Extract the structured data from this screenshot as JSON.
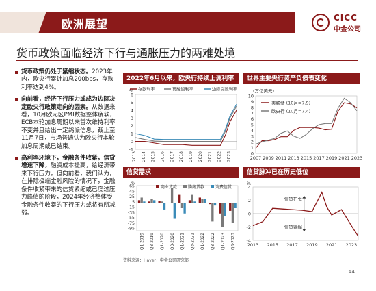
{
  "header": {
    "title": "欧洲展望",
    "logo_en": "CICC",
    "logo_cn": "中金公司"
  },
  "page_title": "货币政策面临经济下行与通胀压力的两难处境",
  "bullets": [
    {
      "lead": "货币政策仍处于紧缩状态。",
      "body": "2023年内，欧央行累计加息200bps，存款利率达到4%。"
    },
    {
      "lead": "向前看，经济下行压力或成为边际决定欧央行政策走向的因素。",
      "body": "从数据来看，10月欧元区PMI数据整体疲软，ECB本轮加息周期以来首次维持利率不变并且给出一定鸽派信息，截止至11月7日，市场普遍认为欧央行本轮加息周期或已结束。"
    },
    {
      "lead": "高利率环境下，金融条件收紧，信贷增速下降，",
      "body": "融资成本提高，给经济带来下行压力。但向前看，我们认为，在排除极端金融风险的情况下，金融条件收紧带来的信贷紧缩或已度过压力峰值的阶段，2024年经济整体受金融条件收紧的下行压力或将有所减弱。"
    }
  ],
  "colors": {
    "brand": "#8b1a1a",
    "series1": "#8b1a1a",
    "series2": "#7a7a7a",
    "series3": "#3a8bb8"
  },
  "source_note": "资料来源：Haver，中金公司研究部",
  "page_number": "44",
  "chart_data": [
    {
      "type": "line",
      "title": "2022年6月以来，欧央行持续上调利率",
      "ylabel": "%",
      "ylim": [
        -1,
        6
      ],
      "yticks": [
        -1,
        0,
        1,
        2,
        3,
        4,
        5,
        6
      ],
      "x": [
        "2013",
        "2014",
        "2015",
        "2016",
        "2017",
        "2018",
        "2019",
        "2020",
        "2021",
        "2022",
        "2022.5",
        "2023",
        "2023.7"
      ],
      "xticks": [
        "2013",
        "2014",
        "2015",
        "2016",
        "2017",
        "2018",
        "2019",
        "2020",
        "2021",
        "2022",
        "2023"
      ],
      "series": [
        {
          "name": "存款利率",
          "values": [
            0,
            0,
            -0.2,
            -0.4,
            -0.4,
            -0.4,
            -0.5,
            -0.5,
            -0.5,
            -0.5,
            0.75,
            2.5,
            4.0
          ]
        },
        {
          "name": "再融资利率",
          "values": [
            0.5,
            0.25,
            0.05,
            0,
            0,
            0,
            0,
            0,
            0,
            0,
            1.25,
            3.0,
            4.5
          ]
        },
        {
          "name": "边际贷款利率",
          "values": [
            1.0,
            0.75,
            0.3,
            0.25,
            0.25,
            0.25,
            0.25,
            0.25,
            0.25,
            0.25,
            1.5,
            3.25,
            4.75
          ]
        }
      ]
    },
    {
      "type": "line",
      "title": "世界主要央行资产负债表变化",
      "ylabel": "(万亿美元)",
      "ylim": [
        0,
        10
      ],
      "yticks": [
        0,
        1,
        2,
        3,
        4,
        5,
        6,
        7,
        8,
        9,
        10
      ],
      "x": [
        "2007",
        "2008",
        "2009",
        "2010",
        "2011",
        "2012",
        "2013",
        "2014",
        "2015",
        "2016",
        "2017",
        "2018",
        "2019",
        "2020",
        "2021",
        "2022",
        "2023"
      ],
      "xticks": [
        "2007",
        "2009",
        "2011",
        "2013",
        "2015",
        "2017",
        "2019",
        "2021",
        "2023"
      ],
      "series": [
        {
          "name": "美联储 (10月=7.9)",
          "values": [
            0.9,
            2.2,
            2.2,
            2.4,
            2.9,
            2.9,
            4.0,
            4.5,
            4.5,
            4.5,
            4.4,
            4.1,
            4.2,
            7.3,
            8.8,
            8.6,
            7.9
          ]
        },
        {
          "name": "欧央行 (10月=7.4)",
          "values": [
            1.6,
            2.0,
            2.3,
            2.6,
            3.5,
            3.9,
            3.0,
            2.6,
            3.3,
            4.3,
            5.0,
            5.2,
            5.2,
            7.8,
            9.6,
            8.8,
            7.4
          ]
        }
      ]
    },
    {
      "type": "bar",
      "title": "信贷需求",
      "ylabel": "%",
      "ylim": [
        -105,
        65
      ],
      "yticks": [
        65,
        45,
        25,
        5,
        -15,
        -35,
        -55,
        -75,
        -95
      ],
      "categories": [
        "Q1-2019",
        "Q3-2019",
        "Q1-2020",
        "Q3-2020",
        "Q1-2021",
        "Q3-2021",
        "Q1-2022",
        "Q3-2022",
        "Q1-2023",
        "Q3-2023"
      ],
      "series": [
        {
          "name": "商业贷款",
          "values": [
            10,
            5,
            8,
            0,
            30,
            10,
            20,
            -5,
            -40,
            -30
          ]
        },
        {
          "name": "购房贷款",
          "values": [
            20,
            15,
            5,
            55,
            -20,
            30,
            15,
            -70,
            -90,
            -75
          ]
        },
        {
          "name": "消费信贷",
          "values": [
            5,
            10,
            -25,
            -60,
            -40,
            5,
            15,
            -10,
            -50,
            -20
          ]
        }
      ]
    },
    {
      "type": "line",
      "title": "信贷脉冲已在历史低位",
      "ylabel": "%",
      "ylim": [
        -4,
        4
      ],
      "yticks": [
        -4,
        -2,
        0,
        2,
        4
      ],
      "x": [
        "2013",
        "2014",
        "2015",
        "2016",
        "2017",
        "2018",
        "2019",
        "2020",
        "2020.5",
        "2021",
        "2022",
        "2023",
        "2023.7"
      ],
      "xticks": [
        "2013",
        "2015",
        "2017",
        "2019",
        "2021",
        "2023"
      ],
      "annotations": [
        "信贷扩张",
        "信贷紧缩"
      ],
      "series": [
        {
          "name": "信贷脉冲",
          "values": [
            -1.8,
            -1.2,
            0.8,
            0.7,
            0.6,
            0.5,
            0.3,
            3.2,
            1.0,
            -0.2,
            0.6,
            -1.8,
            -3.4
          ]
        }
      ]
    }
  ]
}
